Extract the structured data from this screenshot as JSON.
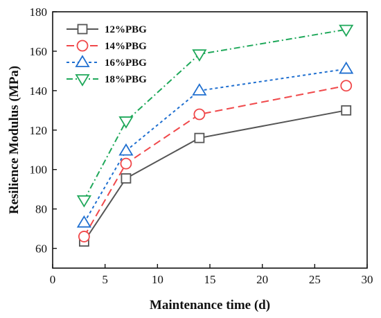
{
  "chart_data": {
    "type": "line",
    "title": "",
    "xlabel": "Maintenance time (d)",
    "ylabel": "Resilience Modulus (MPa)",
    "xlim": [
      0,
      30
    ],
    "ylim": [
      50,
      180
    ],
    "xticks": [
      0,
      5,
      10,
      15,
      20,
      25,
      30
    ],
    "yticks": [
      60,
      80,
      100,
      120,
      140,
      160,
      180
    ],
    "x": [
      3,
      7,
      14,
      28
    ],
    "legend_position": "top-left",
    "grid": false,
    "series": [
      {
        "name": "12%PBG",
        "values": [
          63.5,
          95.5,
          116,
          130
        ],
        "color": "#555555",
        "marker": "square",
        "dash": "solid"
      },
      {
        "name": "14%PBG",
        "values": [
          66,
          103,
          128,
          142.5
        ],
        "color": "#f0484a",
        "marker": "circle",
        "dash": "dashed"
      },
      {
        "name": "16%PBG",
        "values": [
          73,
          109.5,
          140,
          151
        ],
        "color": "#1f6fd0",
        "marker": "triangle-up",
        "dash": "dotted"
      },
      {
        "name": "18%PBG",
        "values": [
          84.5,
          124.5,
          158.5,
          171
        ],
        "color": "#1fa85a",
        "marker": "triangle-down",
        "dash": "dashdot"
      }
    ]
  }
}
